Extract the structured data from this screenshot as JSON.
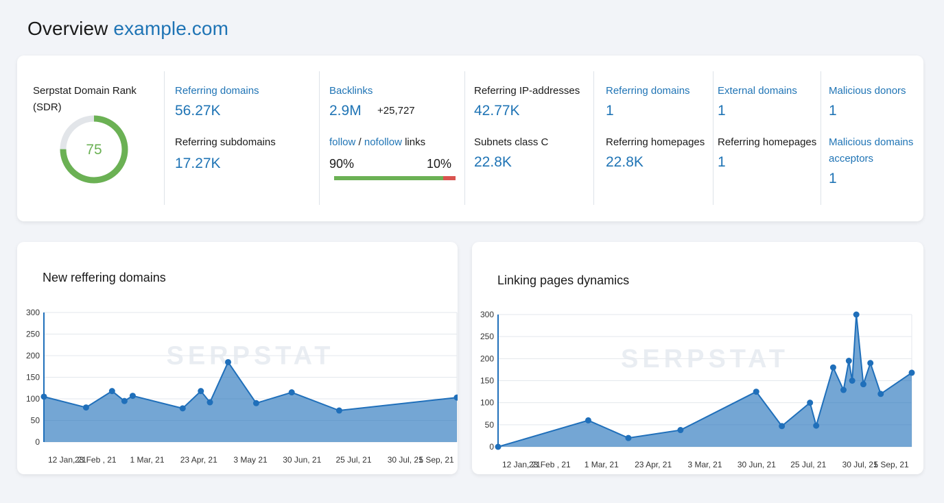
{
  "header": {
    "title": "Overview",
    "domain": "example.com"
  },
  "metrics": {
    "sdr": {
      "label": "Serpstat Domain Rank",
      "label2": "(SDR)",
      "value": "75",
      "fraction": 0.75,
      "ring_color": "#6bb154",
      "track_color": "#e2e5e9"
    },
    "col1": {
      "ref_domains_label": "Referring domains",
      "ref_domains_value": "56.27K",
      "ref_subdomains_label": "Referring subdomains",
      "ref_subdomains_value": "17.27K"
    },
    "col2": {
      "backlinks_label": "Backlinks",
      "backlinks_value": "2.9M",
      "backlinks_delta": "+25,727",
      "follow_label": "follow",
      "separator": "/",
      "nofollow_label": "nofollow",
      "links_label": "links",
      "follow_pct": "90%",
      "nofollow_pct": "10%",
      "follow_fraction": 0.9
    },
    "col3": {
      "ref_ip_label": "Referring IP-addresses",
      "ref_ip_value": "42.77K",
      "subnets_label": "Subnets class C",
      "subnets_value": "22.8K"
    },
    "col4": {
      "ref_domains_label": "Referring domains",
      "ref_domains_value": "1",
      "ref_homepages_label": "Referring homepages",
      "ref_homepages_value": "22.8K"
    },
    "col5": {
      "external_domains_label": "External domains",
      "external_domains_value": "1",
      "ref_homepages_label": "Referring homepages",
      "ref_homepages_value": "1"
    },
    "col6": {
      "malicious_donors_label": "Malicious donors",
      "malicious_donors_value": "1",
      "malicious_acceptors_label1": "Malicious domains",
      "malicious_acceptors_label2": "acceptors",
      "malicious_acceptors_value": "1"
    }
  },
  "charts": {
    "watermark": "SERPSTAT"
  },
  "chart_data": [
    {
      "type": "area",
      "title": "New reffering domains",
      "xlabel": "",
      "ylabel": "",
      "ylim": [
        0,
        300
      ],
      "yticks": [
        0,
        50,
        100,
        150,
        200,
        250,
        300
      ],
      "x_tick_labels": [
        "12 Jan, 21",
        "23 Feb , 21",
        "1 Mar, 21",
        "23 Apr, 21",
        "3 May 21",
        "30 Jun, 21",
        "25 Jul, 21",
        "30 Jul, 21",
        "5 Sep, 21"
      ],
      "points": [
        {
          "t": 0.0,
          "y": 105
        },
        {
          "t": 0.102,
          "y": 80
        },
        {
          "t": 0.165,
          "y": 118
        },
        {
          "t": 0.195,
          "y": 95
        },
        {
          "t": 0.215,
          "y": 107
        },
        {
          "t": 0.336,
          "y": 78
        },
        {
          "t": 0.38,
          "y": 118
        },
        {
          "t": 0.402,
          "y": 92
        },
        {
          "t": 0.446,
          "y": 185
        },
        {
          "t": 0.514,
          "y": 90
        },
        {
          "t": 0.6,
          "y": 115
        },
        {
          "t": 0.715,
          "y": 73
        },
        {
          "t": 1.0,
          "y": 103
        }
      ],
      "grid": true,
      "color": "#1f6fba"
    },
    {
      "type": "area",
      "title": "Linking pages dynamics",
      "xlabel": "",
      "ylabel": "",
      "ylim": [
        0,
        300
      ],
      "yticks": [
        0,
        50,
        100,
        150,
        200,
        250,
        300
      ],
      "x_tick_labels": [
        "12 Jan, 21",
        "23 Feb , 21",
        "1 Mar, 21",
        "23 Apr, 21",
        "3 Mar, 21",
        "30 Jun, 21",
        "25 Jul, 21",
        "30 Jul, 21",
        "5 Sep, 21"
      ],
      "points": [
        {
          "t": 0.0,
          "y": 0
        },
        {
          "t": 0.218,
          "y": 60
        },
        {
          "t": 0.315,
          "y": 20
        },
        {
          "t": 0.441,
          "y": 38
        },
        {
          "t": 0.624,
          "y": 125
        },
        {
          "t": 0.686,
          "y": 47
        },
        {
          "t": 0.754,
          "y": 100
        },
        {
          "t": 0.769,
          "y": 48
        },
        {
          "t": 0.81,
          "y": 180
        },
        {
          "t": 0.835,
          "y": 129
        },
        {
          "t": 0.848,
          "y": 195
        },
        {
          "t": 0.856,
          "y": 150
        },
        {
          "t": 0.866,
          "y": 300
        },
        {
          "t": 0.883,
          "y": 142
        },
        {
          "t": 0.9,
          "y": 190
        },
        {
          "t": 0.925,
          "y": 120
        },
        {
          "t": 1.0,
          "y": 168
        }
      ],
      "grid": true,
      "color": "#1f6fba"
    }
  ]
}
